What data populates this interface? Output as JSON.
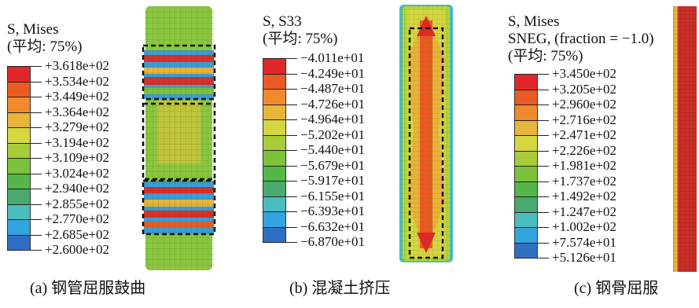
{
  "panels": [
    {
      "title_lines": [
        "S, Mises",
        "(平均: 75%)"
      ],
      "legend_values": [
        "+3.618e+02",
        "+3.534e+02",
        "+3.449e+02",
        "+3.364e+02",
        "+3.279e+02",
        "+3.194e+02",
        "+3.109e+02",
        "+3.024e+02",
        "+2.940e+02",
        "+2.855e+02",
        "+2.770e+02",
        "+2.685e+02",
        "+2.600e+02"
      ],
      "caption": "(a) 钢管屈服鼓曲"
    },
    {
      "title_lines": [
        "S, S33",
        "(平均: 75%)"
      ],
      "legend_values": [
        "−4.011e+01",
        "−4.249e+01",
        "−4.487e+01",
        "−4.726e+01",
        "−4.964e+01",
        "−5.202e+01",
        "−5.440e+01",
        "−5.679e+01",
        "−5.917e+01",
        "−6.155e+01",
        "−6.393e+01",
        "−6.632e+01",
        "−6.870e+01"
      ],
      "caption": "(b) 混凝土挤压"
    },
    {
      "title_lines": [
        "S, Mises",
        "SNEG, (fraction = −1.0)",
        "(平均: 75%)"
      ],
      "legend_values": [
        "+3.450e+02",
        "+3.205e+02",
        "+2.960e+02",
        "+2.716e+02",
        "+2.471e+02",
        "+2.226e+02",
        "+1.981e+02",
        "+1.737e+02",
        "+1.492e+02",
        "+1.247e+02",
        "+1.002e+02",
        "+7.574e+01",
        "+5.126e+01"
      ],
      "caption": "(c) 钢骨屈服"
    }
  ],
  "colors": {
    "legend_scale": [
      "#e0282b",
      "#ea5a22",
      "#f08a2a",
      "#e8b43a",
      "#d6d640",
      "#a8cc3a",
      "#7cc23c",
      "#54b848",
      "#4aa96e",
      "#4bbdbf",
      "#32a4de",
      "#2f6fc2",
      "#2a4aa6"
    ],
    "tube_base": "#7cc23c",
    "concrete_base": "#b4d53c",
    "steel_red": "#d6302c"
  }
}
